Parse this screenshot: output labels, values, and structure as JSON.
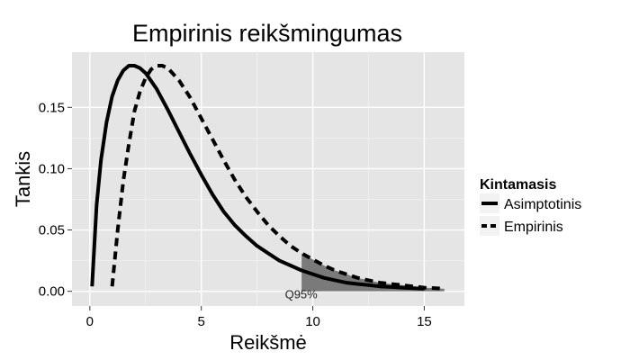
{
  "chart_data": {
    "type": "line",
    "title": "Empirinis reikšmingumas",
    "xlabel": "Reikšmė",
    "ylabel": "Tankis",
    "xlim": [
      -0.8,
      16.8
    ],
    "ylim": [
      -0.012,
      0.195
    ],
    "xticks": [
      0,
      5,
      10,
      15
    ],
    "xtick_labels": [
      "0",
      "5",
      "10",
      "15"
    ],
    "yticks": [
      0.0,
      0.05,
      0.1,
      0.15
    ],
    "ytick_labels": [
      "0.00",
      "0.05",
      "0.10",
      "0.15"
    ],
    "grid": true,
    "legend": {
      "title": "Kintamasis",
      "position": "right",
      "entries": [
        {
          "label": "Asimptotinis",
          "style": "solid"
        },
        {
          "label": "Empirinis",
          "style": "dashed"
        }
      ]
    },
    "series": [
      {
        "name": "Asimptotinis",
        "style": "solid",
        "x": [
          0.1,
          0.3,
          0.5,
          0.75,
          1.0,
          1.25,
          1.5,
          1.75,
          2.0,
          2.25,
          2.5,
          3.0,
          3.5,
          4.0,
          4.5,
          5.0,
          5.5,
          6.0,
          6.5,
          7.0,
          7.5,
          8.0,
          8.5,
          9.0,
          9.5,
          10.0,
          10.5,
          11.0,
          11.5,
          12.0,
          12.5,
          13.0,
          13.5,
          14.0,
          14.5,
          15.0
        ],
        "y": [
          0.004,
          0.07,
          0.107,
          0.138,
          0.159,
          0.172,
          0.18,
          0.184,
          0.184,
          0.182,
          0.178,
          0.165,
          0.148,
          0.13,
          0.112,
          0.095,
          0.079,
          0.065,
          0.054,
          0.045,
          0.037,
          0.031,
          0.025,
          0.021,
          0.017,
          0.014,
          0.011,
          0.009,
          0.007,
          0.006,
          0.005,
          0.004,
          0.0035,
          0.003,
          0.0025,
          0.002
        ]
      },
      {
        "name": "Empirinis",
        "style": "dashed",
        "x": [
          1.0,
          1.25,
          1.5,
          1.75,
          2.0,
          2.25,
          2.5,
          2.75,
          3.0,
          3.25,
          3.5,
          4.0,
          4.5,
          5.0,
          5.5,
          6.0,
          6.5,
          7.0,
          7.5,
          8.0,
          8.5,
          9.0,
          9.5,
          10.0,
          10.5,
          11.0,
          11.5,
          12.0,
          12.5,
          13.0,
          13.5,
          14.0,
          14.5,
          15.0,
          15.5,
          15.9
        ],
        "y": [
          0.004,
          0.05,
          0.09,
          0.12,
          0.147,
          0.163,
          0.174,
          0.181,
          0.184,
          0.184,
          0.182,
          0.172,
          0.158,
          0.141,
          0.124,
          0.107,
          0.091,
          0.077,
          0.065,
          0.054,
          0.045,
          0.037,
          0.031,
          0.026,
          0.021,
          0.017,
          0.014,
          0.011,
          0.009,
          0.007,
          0.006,
          0.005,
          0.004,
          0.003,
          0.0025,
          0.002
        ]
      }
    ],
    "shaded_region": {
      "x_from": 9.5,
      "label": "Q95%"
    }
  }
}
